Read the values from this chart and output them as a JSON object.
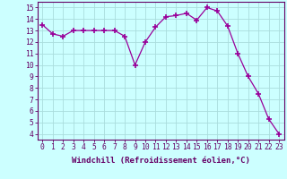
{
  "x": [
    0,
    1,
    2,
    3,
    4,
    5,
    6,
    7,
    8,
    9,
    10,
    11,
    12,
    13,
    14,
    15,
    16,
    17,
    18,
    19,
    20,
    21,
    22,
    23
  ],
  "y": [
    13.5,
    12.7,
    12.5,
    13.0,
    13.0,
    13.0,
    13.0,
    13.0,
    12.5,
    10.0,
    12.0,
    13.3,
    14.2,
    14.3,
    14.5,
    13.9,
    15.0,
    14.7,
    13.4,
    11.0,
    9.0,
    7.5,
    5.3,
    4.0
  ],
  "line_color": "#990099",
  "marker": "+",
  "marker_size": 4,
  "marker_lw": 1.2,
  "bg_color": "#ccffff",
  "grid_color": "#aadddd",
  "xlabel": "Windchill (Refroidissement éolien,°C)",
  "ylabel": "",
  "xlim": [
    -0.5,
    23.5
  ],
  "ylim": [
    3.5,
    15.5
  ],
  "yticks": [
    4,
    5,
    6,
    7,
    8,
    9,
    10,
    11,
    12,
    13,
    14,
    15
  ],
  "xticks": [
    0,
    1,
    2,
    3,
    4,
    5,
    6,
    7,
    8,
    9,
    10,
    11,
    12,
    13,
    14,
    15,
    16,
    17,
    18,
    19,
    20,
    21,
    22,
    23
  ],
  "xtick_labels": [
    "0",
    "1",
    "2",
    "3",
    "4",
    "5",
    "6",
    "7",
    "8",
    "9",
    "10",
    "11",
    "12",
    "13",
    "14",
    "15",
    "16",
    "17",
    "18",
    "19",
    "20",
    "21",
    "22",
    "23"
  ],
  "font_color": "#660066",
  "spine_color": "#660066",
  "tick_color": "#660066",
  "label_fontsize": 6.5,
  "tick_fontsize": 5.8
}
